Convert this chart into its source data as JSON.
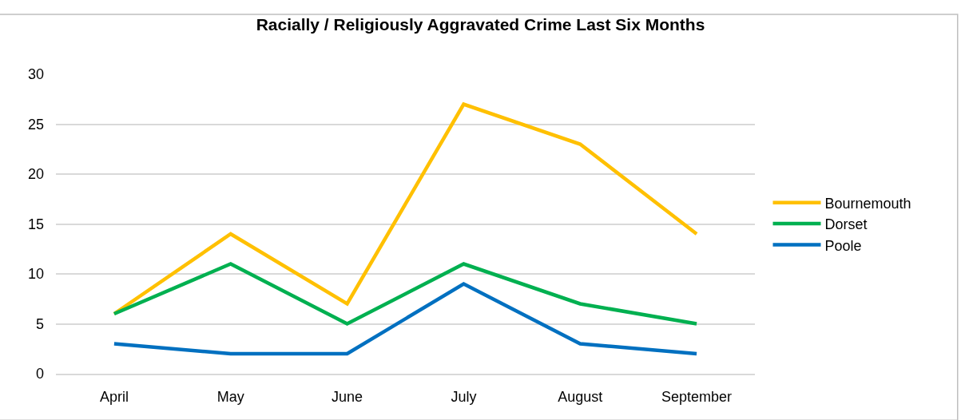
{
  "chart_data": {
    "type": "line",
    "title": "Racially / Religiously Aggravated Crime Last Six Months",
    "categories": [
      "April",
      "May",
      "June",
      "July",
      "August",
      "September"
    ],
    "series": [
      {
        "name": "Bournemouth",
        "color": "#ffc000",
        "values": [
          6,
          14,
          7,
          27,
          23,
          14
        ]
      },
      {
        "name": "Dorset",
        "color": "#00b050",
        "values": [
          6,
          11,
          5,
          11,
          7,
          5
        ]
      },
      {
        "name": "Poole",
        "color": "#0070c0",
        "values": [
          3,
          2,
          2,
          9,
          3,
          2
        ]
      }
    ],
    "ylim": [
      0,
      30
    ],
    "yticks": [
      0,
      5,
      10,
      15,
      20,
      25,
      30
    ],
    "grid": "y",
    "legend": "right",
    "marker": "none",
    "line_style": "solid"
  }
}
